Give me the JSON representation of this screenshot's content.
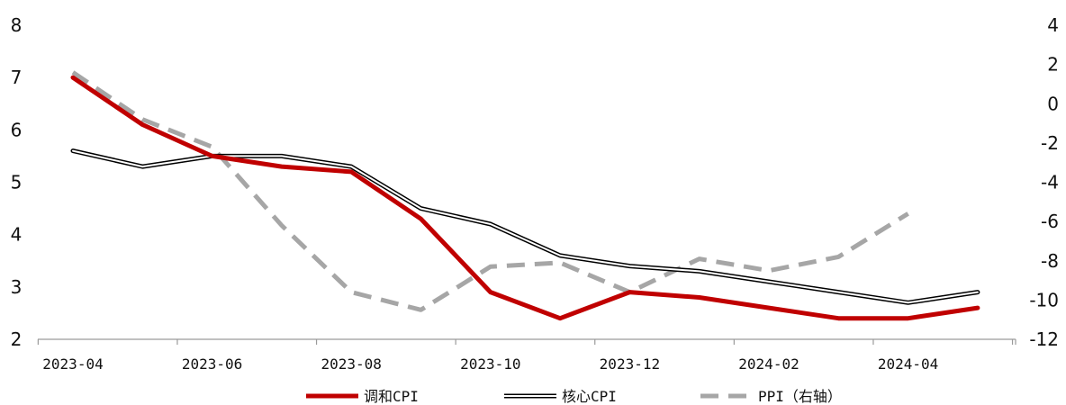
{
  "chart_data": {
    "type": "line",
    "x": [
      "2023-04",
      "2023-05",
      "2023-06",
      "2023-07",
      "2023-08",
      "2023-09",
      "2023-10",
      "2023-11",
      "2023-12",
      "2024-01",
      "2024-02",
      "2024-03",
      "2024-04",
      "2024-05"
    ],
    "x_ticks": [
      "2023-04",
      "2023-06",
      "2023-08",
      "2023-10",
      "2023-12",
      "2024-02",
      "2024-04"
    ],
    "y_left": {
      "min": 2,
      "max": 8,
      "ticks": [
        2,
        3,
        4,
        5,
        6,
        7,
        8
      ]
    },
    "y_right": {
      "min": -12,
      "max": 4,
      "ticks": [
        -12,
        -10,
        -8,
        -6,
        -4,
        -2,
        0,
        2,
        4
      ]
    },
    "series": [
      {
        "name": "调和CPI",
        "axis": "left",
        "color": "#c00000",
        "style": "solid-thick",
        "values": [
          7.0,
          6.1,
          5.5,
          5.3,
          5.2,
          4.3,
          2.9,
          2.4,
          2.9,
          2.8,
          2.6,
          2.4,
          2.4,
          2.6
        ]
      },
      {
        "name": "核心CPI",
        "axis": "left",
        "color": "#000000",
        "style": "double",
        "values": [
          5.6,
          5.3,
          5.5,
          5.5,
          5.3,
          4.5,
          4.2,
          3.6,
          3.4,
          3.3,
          3.1,
          2.9,
          2.7,
          2.9
        ]
      },
      {
        "name": "PPI（右轴）",
        "axis": "right",
        "color": "#a6a6a6",
        "style": "dashed",
        "values": [
          1.6,
          -0.8,
          -2.2,
          -6.2,
          -9.6,
          -10.5,
          -8.3,
          -8.1,
          -9.6,
          -7.9,
          -8.5,
          -7.8,
          -5.6,
          null
        ]
      }
    ],
    "legend_position": "bottom",
    "grid": false
  }
}
